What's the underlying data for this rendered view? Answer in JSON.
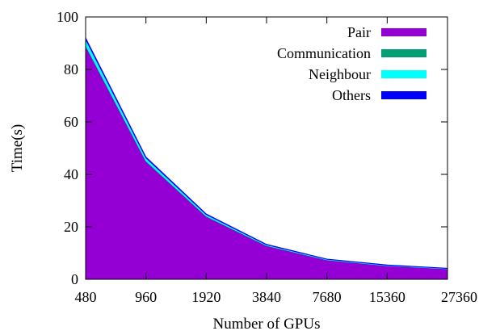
{
  "chart_data": {
    "type": "area",
    "stacked": true,
    "xlabel": "Number of GPUs",
    "ylabel": "Time(s)",
    "ylim": [
      0,
      100
    ],
    "yticks": [
      0,
      20,
      40,
      60,
      80,
      100
    ],
    "categories": [
      "480",
      "960",
      "1920",
      "3840",
      "7680",
      "15360",
      "27360"
    ],
    "legend_position": "top-right",
    "grid": false,
    "series": [
      {
        "name": "Pair",
        "color": "#9400d3",
        "values": [
          89.0,
          45.0,
          24.0,
          12.8,
          7.4,
          5.2,
          4.0
        ]
      },
      {
        "name": "Communication",
        "color": "#009e73",
        "values": [
          0.3,
          0.2,
          0.1,
          0.1,
          0.05,
          0.05,
          0.05
        ]
      },
      {
        "name": "Neighbour",
        "color": "#00ffff",
        "values": [
          2.2,
          1.1,
          0.6,
          0.3,
          0.2,
          0.15,
          0.1
        ]
      },
      {
        "name": "Others",
        "color": "#0000ff",
        "values": [
          0.5,
          0.3,
          0.2,
          0.1,
          0.05,
          0.05,
          0.05
        ]
      }
    ]
  }
}
